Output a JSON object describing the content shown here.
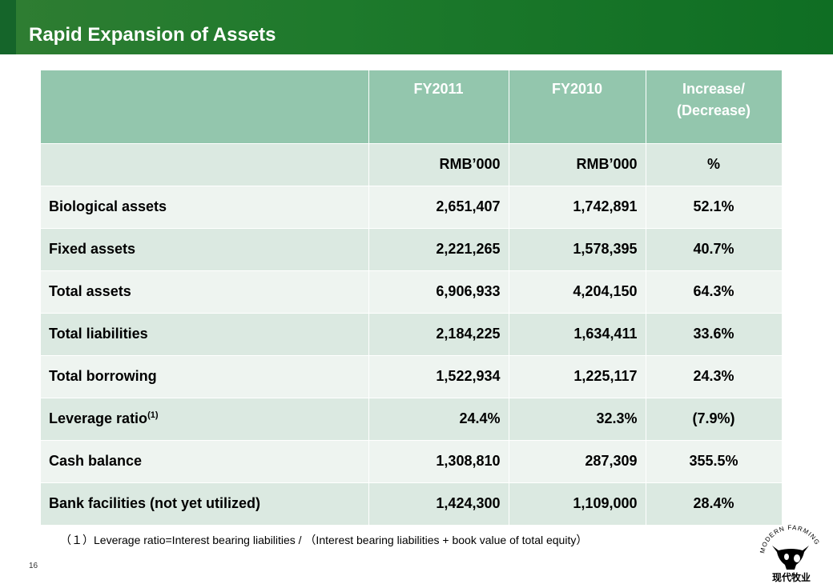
{
  "title": "Rapid Expansion of Assets",
  "table": {
    "headers": [
      "",
      "FY2011",
      "FY2010",
      "Increase/\n(Decrease)"
    ],
    "units": [
      "",
      "RMB’000",
      "RMB’000",
      "%"
    ],
    "rows": [
      {
        "label": "Biological assets",
        "fy2011": "2,651,407",
        "fy2010": "1,742,891",
        "change": "52.1%"
      },
      {
        "label": "Fixed assets",
        "fy2011": "2,221,265",
        "fy2010": "1,578,395",
        "change": "40.7%"
      },
      {
        "label": "Total assets",
        "fy2011": "6,906,933",
        "fy2010": "4,204,150",
        "change": "64.3%"
      },
      {
        "label": "Total liabilities",
        "fy2011": "2,184,225",
        "fy2010": "1,634,411",
        "change": "33.6%"
      },
      {
        "label": "Total borrowing",
        "fy2011": "1,522,934",
        "fy2010": "1,225,117",
        "change": "24.3%"
      },
      {
        "label": "Leverage ratio",
        "label_sup": "(1)",
        "fy2011": "24.4%",
        "fy2010": "32.3%",
        "change": "(7.9%)"
      },
      {
        "label": "Cash balance",
        "fy2011": "1,308,810",
        "fy2010": "287,309",
        "change": "355.5%"
      },
      {
        "label": "Bank facilities (not yet utilized)",
        "fy2011": "1,424,300",
        "fy2010": "1,109,000",
        "change": "28.4%"
      }
    ]
  },
  "footnote": "（１）Leverage ratio=Interest bearing liabilities / （Interest bearing liabilities + book value of total equity）",
  "page_number": "16",
  "logo": {
    "arc_text": "MODERN FARMING",
    "chinese_text": "现代牧业",
    "icon": "cow-head-icon"
  },
  "colors": {
    "header_green": "#1e7a2c",
    "table_header": "#93c6ad",
    "row_even": "#dbe9e1",
    "row_odd": "#eef4f0"
  }
}
